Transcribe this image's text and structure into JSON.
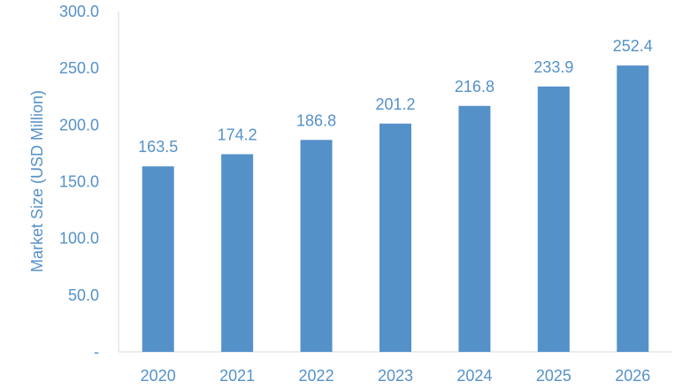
{
  "chart_data": {
    "type": "bar",
    "categories": [
      "2020",
      "2021",
      "2022",
      "2023",
      "2024",
      "2025",
      "2026"
    ],
    "values": [
      163.5,
      174.2,
      186.8,
      201.2,
      216.8,
      233.9,
      252.4
    ],
    "value_labels": [
      "163.5",
      "174.2",
      "186.8",
      "201.2",
      "216.8",
      "233.9",
      "252.4"
    ],
    "title": "",
    "xlabel": "",
    "ylabel": "Market Size (USD Million)",
    "ylim": [
      0,
      300
    ],
    "yticks": [
      0,
      50,
      100,
      150,
      200,
      250,
      300
    ],
    "ytick_labels": [
      "-",
      "50.0",
      "100.0",
      "150.0",
      "200.0",
      "250.0",
      "300.0"
    ],
    "grid": false,
    "legend": "none"
  },
  "colors": {
    "bar": "#5591c9",
    "text": "#5591c9",
    "axis": "#d9d9d9"
  }
}
